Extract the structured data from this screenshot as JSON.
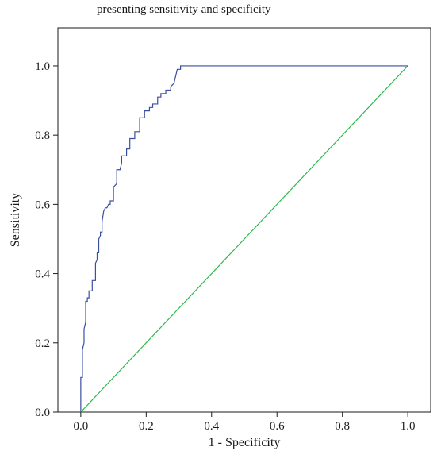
{
  "chart_data": {
    "type": "line",
    "title": "presenting sensitivity and specificity",
    "xlabel": "1 - Specificity",
    "ylabel": "Sensitivity",
    "xlim": [
      -0.07,
      1.07
    ],
    "ylim": [
      0.0,
      1.11
    ],
    "xticks": [
      0.0,
      0.2,
      0.4,
      0.6,
      0.8,
      1.0
    ],
    "yticks": [
      0.0,
      0.2,
      0.4,
      0.6,
      0.8,
      1.0
    ],
    "tick_labels_x": [
      "0.0",
      "0.2",
      "0.4",
      "0.6",
      "0.8",
      "1.0"
    ],
    "tick_labels_y": [
      "0.0",
      "0.2",
      "0.4",
      "0.6",
      "0.8",
      "1.0"
    ],
    "grid": false,
    "legend": "none",
    "colors": {
      "roc": "#3a4fa0",
      "reference": "#2db84d",
      "axis": "#1a1a1a"
    },
    "series": [
      {
        "x": [
          0.0,
          0.0,
          0.005,
          0.005,
          0.01,
          0.01,
          0.015,
          0.015,
          0.02,
          0.02,
          0.025,
          0.025,
          0.035,
          0.035,
          0.045,
          0.045,
          0.05,
          0.05,
          0.055,
          0.055,
          0.06,
          0.06,
          0.065,
          0.065,
          0.07,
          0.075,
          0.08,
          0.085,
          0.09,
          0.09,
          0.1,
          0.1,
          0.11,
          0.11,
          0.12,
          0.125,
          0.125,
          0.14,
          0.14,
          0.15,
          0.15,
          0.165,
          0.165,
          0.18,
          0.18,
          0.195,
          0.195,
          0.21,
          0.21,
          0.22,
          0.22,
          0.235,
          0.235,
          0.245,
          0.245,
          0.26,
          0.26,
          0.275,
          0.275,
          0.285,
          0.29,
          0.295,
          0.305,
          0.305,
          1.0
        ],
        "y": [
          0.0,
          0.1,
          0.1,
          0.18,
          0.2,
          0.24,
          0.26,
          0.32,
          0.32,
          0.33,
          0.33,
          0.35,
          0.35,
          0.38,
          0.38,
          0.43,
          0.44,
          0.46,
          0.46,
          0.5,
          0.51,
          0.52,
          0.52,
          0.55,
          0.58,
          0.59,
          0.59,
          0.6,
          0.6,
          0.61,
          0.61,
          0.65,
          0.66,
          0.7,
          0.7,
          0.72,
          0.74,
          0.74,
          0.76,
          0.76,
          0.79,
          0.79,
          0.81,
          0.81,
          0.85,
          0.85,
          0.87,
          0.87,
          0.88,
          0.88,
          0.89,
          0.89,
          0.91,
          0.91,
          0.92,
          0.92,
          0.93,
          0.93,
          0.94,
          0.95,
          0.97,
          0.99,
          0.99,
          1.0,
          1.0
        ]
      },
      {
        "x": [
          0.0,
          1.0
        ],
        "y": [
          0.0,
          1.0
        ]
      }
    ]
  }
}
